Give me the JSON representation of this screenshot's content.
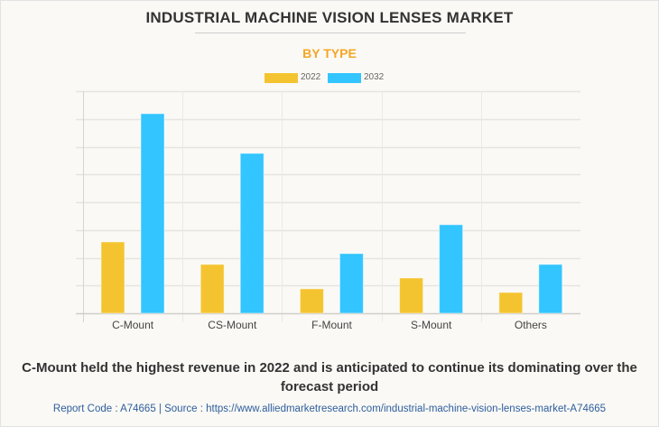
{
  "chart_data": {
    "type": "bar",
    "title": "INDUSTRIAL MACHINE VISION LENSES MARKET",
    "subtitle": "BY TYPE",
    "categories": [
      "C-Mount",
      "CS-Mount",
      "F-Mount",
      "S-Mount",
      "Others"
    ],
    "series": [
      {
        "name": "2022",
        "color": "#f4c430",
        "values": [
          2.57,
          1.76,
          0.88,
          1.27,
          0.75
        ]
      },
      {
        "name": "2032",
        "color": "#33c5ff",
        "values": [
          7.19,
          5.76,
          2.15,
          3.19,
          1.76
        ]
      }
    ],
    "xlabel": "",
    "ylabel": "",
    "ylim": [
      0,
      8
    ],
    "y_ticks_labeled": false,
    "grid": true,
    "legend_position": "top-center"
  },
  "caption": "C-Mount held the highest revenue in 2022 and is anticipated to continue its dominating over the forecast period",
  "footer": "Report Code : A74665  |  Source : https://www.alliedmarketresearch.com/industrial-machine-vision-lenses-market-A74665"
}
